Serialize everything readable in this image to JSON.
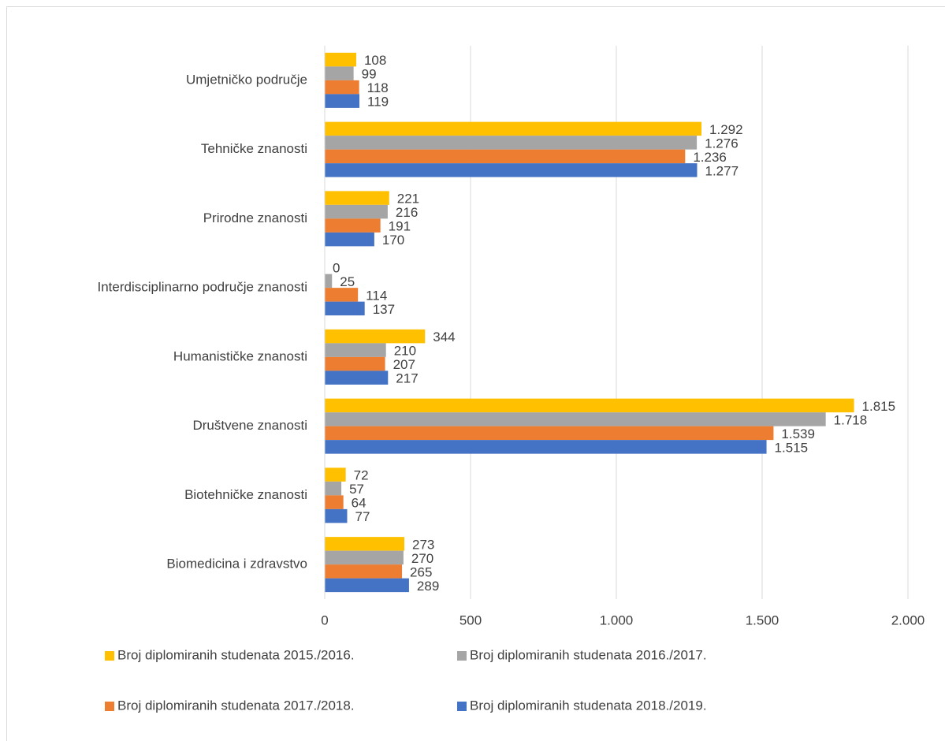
{
  "chart_data": {
    "type": "hbar",
    "categories": [
      "Biomedicina i zdravstvo",
      "Biotehničke znanosti",
      "Društvene znanosti",
      "Humanističke znanosti",
      "Interdisciplinarno područje znanosti",
      "Prirodne znanosti",
      "Tehničke znanosti",
      "Umjetničko područje"
    ],
    "series": [
      {
        "name": "Broj diplomiranih studenata 2015./2016.",
        "color": "#ffc000",
        "values": [
          273,
          72,
          1815,
          344,
          0,
          221,
          1292,
          108
        ],
        "value_labels": [
          "273",
          "72",
          "1.815",
          "344",
          "0",
          "221",
          "1.292",
          "108"
        ]
      },
      {
        "name": "Broj diplomiranih studenata 2016./2017.",
        "color": "#a5a5a5",
        "values": [
          270,
          57,
          1718,
          210,
          25,
          216,
          1276,
          99
        ],
        "value_labels": [
          "270",
          "57",
          "1.718",
          "210",
          "25",
          "216",
          "1.276",
          "99"
        ]
      },
      {
        "name": "Broj diplomiranih studenata 2017./2018.",
        "color": "#ed7d31",
        "values": [
          265,
          64,
          1539,
          207,
          114,
          191,
          1236,
          118
        ],
        "value_labels": [
          "265",
          "64",
          "1.539",
          "207",
          "114",
          "191",
          "1.236",
          "118"
        ]
      },
      {
        "name": "Broj diplomiranih studenata 2018./2019.",
        "color": "#4472c4",
        "values": [
          289,
          77,
          1515,
          217,
          137,
          170,
          1277,
          119
        ],
        "value_labels": [
          "289",
          "77",
          "1.515",
          "217",
          "137",
          "170",
          "1.277",
          "119"
        ]
      }
    ],
    "xlim": [
      0,
      2000
    ],
    "xticks": [
      0,
      500,
      {
        "value": 1000,
        "label": "1.000"
      },
      {
        "value": 1500,
        "label": "1.500"
      },
      {
        "value": 2000,
        "label": "2.000"
      }
    ],
    "grid": true,
    "legend": "bottom"
  }
}
